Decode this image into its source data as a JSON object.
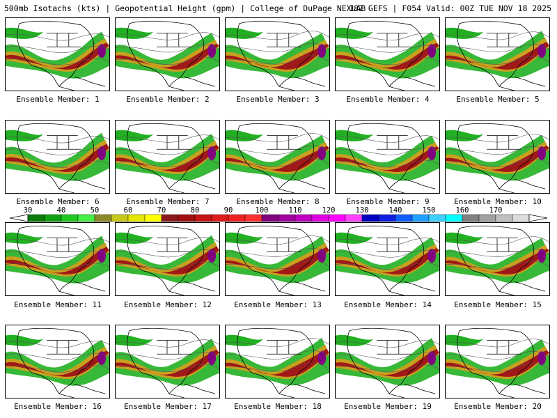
{
  "header": {
    "title_left": "500mb Isotachs (kts) | Geopotential Height (gpm) | College of DuPage NEXLAB",
    "title_right": "18Z GEFS | F054 Valid: 00Z TUE NOV 18 2025"
  },
  "members": [
    {
      "label": "Ensemble Member: 1"
    },
    {
      "label": "Ensemble Member: 2"
    },
    {
      "label": "Ensemble Member: 3"
    },
    {
      "label": "Ensemble Member: 4"
    },
    {
      "label": "Ensemble Member: 5"
    },
    {
      "label": "Ensemble Member: 6"
    },
    {
      "label": "Ensemble Member: 7"
    },
    {
      "label": "Ensemble Member: 8"
    },
    {
      "label": "Ensemble Member: 9"
    },
    {
      "label": "Ensemble Member: 10"
    },
    {
      "label": "Ensemble Member: 11"
    },
    {
      "label": "Ensemble Member: 12"
    },
    {
      "label": "Ensemble Member: 13"
    },
    {
      "label": "Ensemble Member: 14"
    },
    {
      "label": "Ensemble Member: 15"
    },
    {
      "label": "Ensemble Member: 16"
    },
    {
      "label": "Ensemble Member: 17"
    },
    {
      "label": "Ensemble Member: 18"
    },
    {
      "label": "Ensemble Member: 19"
    },
    {
      "label": "Ensemble Member: 20"
    }
  ],
  "colorbar": {
    "labels": [
      "30",
      "40",
      "50",
      "60",
      "70",
      "80",
      "90",
      "100",
      "110",
      "120",
      "130",
      "140",
      "150",
      "160",
      "170"
    ],
    "colors": [
      "#0a7a0a",
      "#11a011",
      "#22c822",
      "#44ee44",
      "#8a8a2a",
      "#c8c81a",
      "#e6e600",
      "#ffff00",
      "#8b1a1a",
      "#a01010",
      "#c41414",
      "#dd1c1c",
      "#ee2222",
      "#ff3030",
      "#800080",
      "#a000a0",
      "#c000c0",
      "#e000e0",
      "#ff00ff",
      "#ff40ff",
      "#0000c0",
      "#1020e0",
      "#1060ff",
      "#20a0ff",
      "#40d0ff",
      "#00ffff",
      "#808080",
      "#a0a0a0",
      "#c0c0c0",
      "#dcdcdc"
    ]
  },
  "map_colors": {
    "land_outline": "#000000",
    "height_contour": "#555555",
    "jet_low": "#22b022",
    "jet_mid": "#c8a020",
    "jet_high": "#a01818",
    "jet_max": "#800080"
  }
}
